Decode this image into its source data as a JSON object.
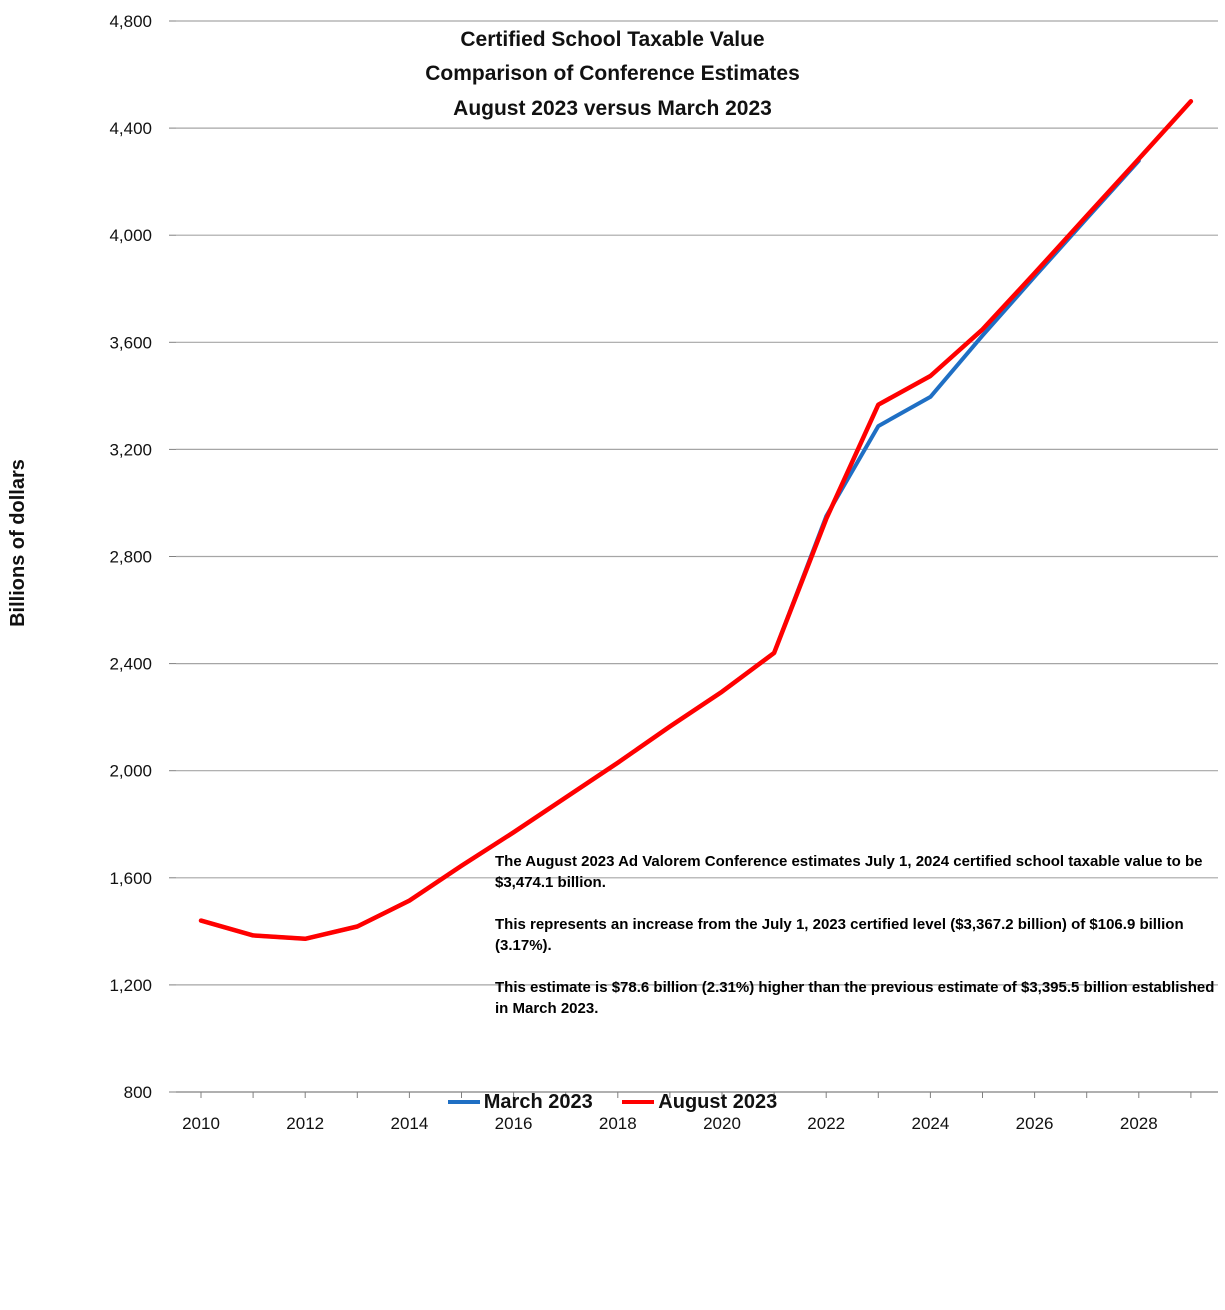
{
  "chart_data": {
    "type": "line",
    "title_lines": [
      "Certified School Taxable Value",
      "Comparison of Conference Estimates",
      "August 2023 versus March 2023"
    ],
    "xlabel": "",
    "ylabel": "Billions of dollars",
    "xlim": [
      2010,
      2029
    ],
    "ylim": [
      800,
      4800
    ],
    "x_ticks": [
      2010,
      2012,
      2014,
      2016,
      2018,
      2020,
      2022,
      2024,
      2026,
      2028
    ],
    "y_ticks": [
      800,
      1200,
      1600,
      2000,
      2400,
      2800,
      3200,
      3600,
      4000,
      4400,
      4800
    ],
    "y_tick_labels": [
      "800",
      "1,200",
      "1,600",
      "2,000",
      "2,400",
      "2,800",
      "3,200",
      "3,600",
      "4,000",
      "4,400",
      "4,800"
    ],
    "grid": "horizontal",
    "legend_position": "bottom",
    "series": [
      {
        "name": "March 2023",
        "color": "#1f6fc4",
        "x": [
          2010,
          2011,
          2012,
          2013,
          2014,
          2015,
          2016,
          2017,
          2018,
          2019,
          2020,
          2021,
          2022,
          2023,
          2024,
          2025,
          2026,
          2027,
          2028
        ],
        "y": [
          1440,
          1385,
          1372,
          1418,
          1515,
          1645,
          1770,
          1900,
          2030,
          2165,
          2295,
          2440,
          2950,
          3287,
          3396,
          3625,
          3845,
          4062,
          4278
        ]
      },
      {
        "name": "August 2023",
        "color": "#ff0000",
        "x": [
          2010,
          2011,
          2012,
          2013,
          2014,
          2015,
          2016,
          2017,
          2018,
          2019,
          2020,
          2021,
          2022,
          2023,
          2024,
          2025,
          2026,
          2027,
          2028,
          2029
        ],
        "y": [
          1440,
          1385,
          1372,
          1418,
          1515,
          1645,
          1770,
          1900,
          2030,
          2165,
          2295,
          2440,
          2940,
          3367,
          3474,
          3648,
          3858,
          4072,
          4285,
          4500
        ]
      }
    ],
    "annotation": [
      "The August 2023 Ad Valorem Conference estimates  July 1, 2024 certified school taxable value to be $3,474.1 billion.",
      "This represents an increase from the  July 1, 2023 certified level ($3,367.2 billion) of $106.9 billion (3.17%).",
      "This estimate is $78.6 billion (2.31%) higher than the previous estimate of $3,395.5 billion established in March 2023."
    ]
  }
}
